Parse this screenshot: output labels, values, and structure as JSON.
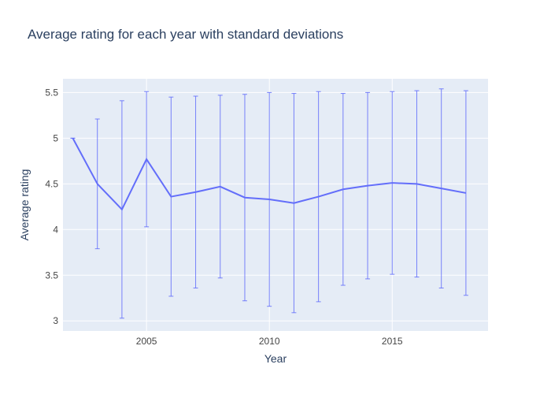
{
  "chart_data": {
    "type": "line",
    "title": "Average rating for each year with standard deviations",
    "xlabel": "Year",
    "ylabel": "Average rating",
    "xlim": [
      2001.6,
      2018.9
    ],
    "ylim": [
      2.89,
      5.65
    ],
    "x_ticks": [
      2005,
      2010,
      2015
    ],
    "y_ticks": [
      3,
      3.5,
      4,
      4.5,
      5,
      5.5
    ],
    "x_tick_labels": [
      "2005",
      "2010",
      "2015"
    ],
    "y_tick_labels": [
      "3",
      "3.5",
      "4",
      "4.5",
      "5",
      "5.5"
    ],
    "grid": true,
    "legend": "none",
    "series": [
      {
        "x": [
          2002,
          2003,
          2004,
          2005,
          2006,
          2007,
          2008,
          2009,
          2010,
          2011,
          2012,
          2013,
          2014,
          2015,
          2016,
          2017,
          2018
        ],
        "y": [
          5.0,
          4.5,
          4.22,
          4.77,
          4.36,
          4.41,
          4.47,
          4.35,
          4.33,
          4.29,
          4.36,
          4.44,
          4.48,
          4.51,
          4.5,
          4.45,
          4.4
        ],
        "error": [
          0.0,
          0.71,
          1.19,
          0.74,
          1.09,
          1.05,
          1.0,
          1.13,
          1.17,
          1.2,
          1.15,
          1.05,
          1.02,
          1.0,
          1.02,
          1.09,
          1.12
        ]
      }
    ],
    "colors": {
      "line": "#636efa",
      "plot_bg": "#e5ecf6",
      "grid": "#ffffff",
      "text": "#2a3f5f",
      "tick_text": "#444444"
    }
  }
}
